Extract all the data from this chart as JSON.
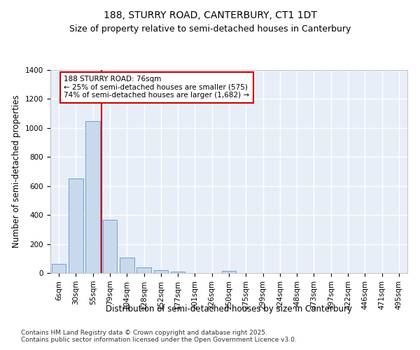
{
  "title": "188, STURRY ROAD, CANTERBURY, CT1 1DT",
  "subtitle": "Size of property relative to semi-detached houses in Canterbury",
  "xlabel": "Distribution of semi-detached houses by size in Canterbury",
  "ylabel": "Number of semi-detached properties",
  "categories": [
    "6sqm",
    "30sqm",
    "55sqm",
    "79sqm",
    "104sqm",
    "128sqm",
    "152sqm",
    "177sqm",
    "201sqm",
    "226sqm",
    "250sqm",
    "275sqm",
    "299sqm",
    "324sqm",
    "348sqm",
    "373sqm",
    "397sqm",
    "422sqm",
    "446sqm",
    "471sqm",
    "495sqm"
  ],
  "values": [
    65,
    650,
    1050,
    365,
    105,
    38,
    20,
    8,
    0,
    0,
    14,
    0,
    0,
    0,
    0,
    0,
    0,
    0,
    0,
    0,
    0
  ],
  "bar_color": "#c9d9ed",
  "bar_edge_color": "#6a9fd8",
  "background_color": "#e8eef8",
  "grid_color": "#ffffff",
  "vline_color": "#cc0000",
  "annotation_text": "188 STURRY ROAD: 76sqm\n← 25% of semi-detached houses are smaller (575)\n74% of semi-detached houses are larger (1,682) →",
  "annotation_box_color": "#ffffff",
  "annotation_box_edge": "#cc0000",
  "ylim": [
    0,
    1400
  ],
  "yticks": [
    0,
    200,
    400,
    600,
    800,
    1000,
    1200,
    1400
  ],
  "footer": "Contains HM Land Registry data © Crown copyright and database right 2025.\nContains public sector information licensed under the Open Government Licence v3.0.",
  "title_fontsize": 10,
  "subtitle_fontsize": 9,
  "xlabel_fontsize": 8.5,
  "ylabel_fontsize": 8.5,
  "tick_fontsize": 7.5,
  "footer_fontsize": 6.5,
  "annotation_fontsize": 7.5
}
